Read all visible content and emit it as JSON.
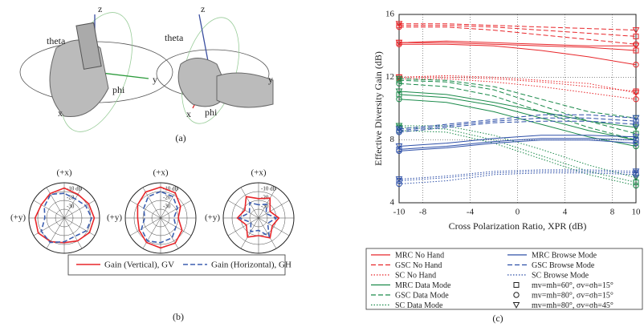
{
  "figure": {
    "panel_a_labels": [
      "z",
      "theta",
      "y",
      "phi",
      "x",
      "z",
      "theta",
      "y",
      "phi",
      "x"
    ],
    "captions": [
      "(a)",
      "(b)",
      "(c)"
    ]
  },
  "chart_data": [
    {
      "type": "polar",
      "top_label": "(+x)",
      "left_label": "(+y)",
      "theta": [
        0,
        30,
        60,
        90,
        120,
        150,
        180,
        210,
        240,
        270,
        300,
        330
      ],
      "rlim": [
        -40,
        0
      ],
      "rticks": [
        {
          "value": -10,
          "label": "-10 dB"
        },
        -20,
        -30
      ],
      "series": [
        {
          "name": "Gain (Vertical), GV",
          "color": "#e8262a",
          "dash": "solid",
          "values": [
            -6,
            -8,
            -10,
            -7,
            -6,
            -9,
            -12,
            -10,
            -7,
            -6,
            -8,
            -9
          ]
        },
        {
          "name": "Gain (Horizontal), GH",
          "color": "#3d5fb0",
          "dash": "dashed",
          "values": [
            -12,
            -9,
            -14,
            -18,
            -10,
            -8,
            -13,
            -16,
            -11,
            -9,
            -12,
            -15
          ]
        }
      ]
    },
    {
      "type": "polar",
      "top_label": "(+x)",
      "left_label": "(+y)",
      "theta": [
        0,
        30,
        60,
        90,
        120,
        150,
        180,
        210,
        240,
        270,
        300,
        330
      ],
      "rlim": [
        -40,
        0
      ],
      "rticks": [
        {
          "value": -10,
          "label": "-10 dB"
        },
        -20,
        -30
      ],
      "series": [
        {
          "color": "#e8262a",
          "dash": "solid",
          "values": [
            -5,
            -6,
            -10,
            -14,
            -12,
            -8,
            -6,
            -7,
            -12,
            -20,
            -14,
            -7
          ]
        },
        {
          "color": "#3d5fb0",
          "dash": "dashed",
          "values": [
            -10,
            -12,
            -18,
            -22,
            -15,
            -10,
            -12,
            -14,
            -20,
            -25,
            -18,
            -12
          ]
        }
      ]
    },
    {
      "type": "polar",
      "top_label": "(+x)",
      "left_label": "(+y)",
      "theta": [
        0,
        30,
        60,
        90,
        120,
        150,
        180,
        210,
        240,
        270,
        300,
        330
      ],
      "rlim": [
        -40,
        0
      ],
      "rticks": [
        {
          "value": -10,
          "label": "-10 dB"
        },
        -20,
        -30
      ],
      "series": [
        {
          "color": "#e8262a",
          "dash": "solid",
          "values": [
            -18,
            -12,
            -22,
            -16,
            -24,
            -15,
            -20,
            -14,
            -22,
            -17,
            -25,
            -14
          ]
        },
        {
          "color": "#3d5fb0",
          "dash": "dashed",
          "values": [
            -25,
            -20,
            -28,
            -18,
            -30,
            -22,
            -26,
            -16,
            -28,
            -20,
            -30,
            -22
          ]
        }
      ]
    },
    {
      "type": "line",
      "xlabel": "Cross Polarization Ratio, XPR (dB)",
      "ylabel": "Effective Diversity Gain (dB)",
      "x": [
        -10,
        -6,
        -2,
        2,
        6,
        10
      ],
      "xlim": [
        -10,
        10
      ],
      "xticks": [
        -10,
        -8,
        -4,
        0,
        4,
        8,
        10
      ],
      "ylim": [
        4,
        16
      ],
      "yticks": [
        4,
        8,
        12,
        16
      ],
      "grid": true,
      "markers": [
        {
          "label": "mv=mh=60°, σv=σh=15°",
          "shape": "square"
        },
        {
          "label": "mv=mh=80°, σv=σh=15°",
          "shape": "circle"
        },
        {
          "label": "mv=mh=80°, σv=σh=45°",
          "shape": "triangle"
        }
      ],
      "series": [
        {
          "name": "MRC No Hand",
          "color": "#e8262a",
          "dash": "solid",
          "values": [
            [
              14.2,
              14.2,
              14.1,
              14.0,
              13.9,
              13.7
            ],
            [
              14.1,
              14.1,
              14.0,
              13.7,
              13.3,
              12.8
            ],
            [
              14.2,
              14.3,
              14.2,
              14.1,
              14.0,
              14.0
            ]
          ]
        },
        {
          "name": "GSC No Hand",
          "color": "#e8262a",
          "dash": "dashed",
          "values": [
            [
              15.3,
              15.3,
              15.2,
              15.0,
              14.8,
              14.6
            ],
            [
              15.2,
              15.2,
              15.0,
              14.7,
              14.4,
              14.1
            ],
            [
              15.4,
              15.4,
              15.3,
              15.2,
              15.1,
              15.0
            ]
          ]
        },
        {
          "name": "SC No Hand",
          "color": "#e8262a",
          "dash": "dotted",
          "values": [
            [
              12.0,
              12.0,
              11.9,
              11.7,
              11.4,
              11.1
            ],
            [
              11.9,
              11.9,
              11.7,
              11.4,
              11.0,
              10.6
            ],
            [
              12.0,
              12.1,
              12.0,
              11.8,
              11.6,
              11.0
            ]
          ]
        },
        {
          "name": "MRC Data Mode",
          "color": "#1a8a4a",
          "dash": "solid",
          "values": [
            [
              10.9,
              10.7,
              10.2,
              9.4,
              8.6,
              8.0
            ],
            [
              10.6,
              10.4,
              9.8,
              9.0,
              8.2,
              7.6
            ],
            [
              11.1,
              10.9,
              10.4,
              9.8,
              9.2,
              8.8
            ]
          ]
        },
        {
          "name": "GSC Data Mode",
          "color": "#1a8a4a",
          "dash": "dashed",
          "values": [
            [
              11.8,
              11.7,
              11.2,
              10.2,
              9.2,
              8.4
            ],
            [
              11.6,
              11.4,
              10.8,
              9.8,
              8.8,
              8.0
            ],
            [
              11.9,
              11.8,
              11.4,
              10.6,
              9.8,
              9.4
            ]
          ]
        },
        {
          "name": "SC Data Mode",
          "color": "#1a8a4a",
          "dash": "dotted",
          "values": [
            [
              8.8,
              8.7,
              8.0,
              7.0,
              6.0,
              5.3
            ],
            [
              8.6,
              8.5,
              7.8,
              6.8,
              5.8,
              5.1
            ],
            [
              8.9,
              8.9,
              8.3,
              7.4,
              6.4,
              5.6
            ]
          ]
        },
        {
          "name": "MRC Browse Mode",
          "color": "#2d4fa8",
          "dash": "solid",
          "values": [
            [
              7.4,
              7.6,
              7.9,
              8.1,
              8.1,
              8.0
            ],
            [
              7.3,
              7.5,
              7.8,
              8.0,
              8.0,
              7.8
            ],
            [
              7.6,
              7.8,
              8.1,
              8.3,
              8.3,
              8.2
            ]
          ]
        },
        {
          "name": "GSC Browse Mode",
          "color": "#2d4fa8",
          "dash": "dashed",
          "values": [
            [
              8.6,
              8.9,
              9.2,
              9.4,
              9.4,
              9.2
            ],
            [
              8.5,
              8.8,
              9.1,
              9.2,
              9.2,
              9.0
            ],
            [
              8.7,
              9.0,
              9.3,
              9.6,
              9.6,
              9.4
            ]
          ]
        },
        {
          "name": "SC Browse Mode",
          "color": "#2d4fa8",
          "dash": "dotted",
          "values": [
            [
              5.4,
              5.6,
              5.9,
              6.0,
              6.0,
              5.9
            ],
            [
              5.2,
              5.4,
              5.8,
              5.9,
              5.9,
              5.8
            ],
            [
              5.5,
              5.7,
              6.0,
              6.1,
              6.1,
              6.0
            ]
          ]
        }
      ]
    }
  ]
}
